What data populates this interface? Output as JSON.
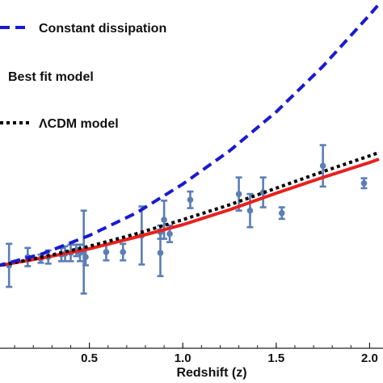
{
  "chart_data": {
    "type": "line",
    "xlabel": "Redshift (z)",
    "ylabel": "",
    "xlim": [
      0.0,
      2.05
    ],
    "ylim": [
      -0.1,
      4.1
    ],
    "grid": false,
    "legend_position": "top-left",
    "x_ticks": [
      "0.5",
      "1.0",
      "1.5",
      "2.0"
    ],
    "x_tick_values": [
      0.5,
      1.0,
      1.5,
      2.0
    ],
    "series": [
      {
        "name": "Constant dissipation",
        "style": "dashed",
        "color": "#1a1ad0",
        "x": [
          0.0,
          0.25,
          0.5,
          0.75,
          1.0,
          1.25,
          1.5,
          1.75,
          2.0,
          2.05
        ],
        "y": [
          0.89,
          1.04,
          1.26,
          1.53,
          1.88,
          2.28,
          2.75,
          3.3,
          3.92,
          4.05
        ]
      },
      {
        "name": "Best fit model",
        "style": "solid",
        "color": "#e8211f",
        "x": [
          0.0,
          0.25,
          0.5,
          0.75,
          1.0,
          1.25,
          1.5,
          1.75,
          2.0,
          2.05
        ],
        "y": [
          0.89,
          0.99,
          1.1,
          1.24,
          1.39,
          1.57,
          1.77,
          1.96,
          2.14,
          2.18
        ]
      },
      {
        "name": "ΛCDM model",
        "style": "dotted",
        "color": "#000000",
        "x": [
          0.0,
          0.25,
          0.5,
          0.75,
          1.0,
          1.25,
          1.5,
          1.75,
          2.0,
          2.05
        ],
        "y": [
          0.89,
          1.0,
          1.13,
          1.28,
          1.45,
          1.63,
          1.83,
          2.03,
          2.22,
          2.26
        ]
      }
    ],
    "data_points": {
      "color": "#5b7eb5",
      "points": [
        {
          "x": 0.07,
          "y": 0.9,
          "err": 0.26
        },
        {
          "x": 0.17,
          "y": 1.0,
          "err": 0.11
        },
        {
          "x": 0.24,
          "y": 0.98,
          "err": 0.05
        },
        {
          "x": 0.28,
          "y": 1.0,
          "err": 0.08
        },
        {
          "x": 0.35,
          "y": 1.03,
          "err": 0.08
        },
        {
          "x": 0.37,
          "y": 1.04,
          "err": 0.09
        },
        {
          "x": 0.4,
          "y": 1.05,
          "err": 0.1
        },
        {
          "x": 0.43,
          "y": 1.08,
          "err": 0.07
        },
        {
          "x": 0.45,
          "y": 1.05,
          "err": 0.1
        },
        {
          "x": 0.47,
          "y": 1.06,
          "err": 0.5
        },
        {
          "x": 0.48,
          "y": 1.0,
          "err": 0.1
        },
        {
          "x": 0.59,
          "y": 1.06,
          "err": 0.1
        },
        {
          "x": 0.68,
          "y": 1.06,
          "err": 0.1
        },
        {
          "x": 0.78,
          "y": 1.26,
          "err": 0.35
        },
        {
          "x": 0.88,
          "y": 1.05,
          "err": 0.28
        },
        {
          "x": 0.88,
          "y": 1.3,
          "err": 0.08
        },
        {
          "x": 0.9,
          "y": 1.45,
          "err": 0.23
        },
        {
          "x": 0.93,
          "y": 1.28,
          "err": 0.1
        },
        {
          "x": 1.04,
          "y": 1.69,
          "err": 0.1
        },
        {
          "x": 1.3,
          "y": 1.76,
          "err": 0.2
        },
        {
          "x": 1.36,
          "y": 1.56,
          "err": 0.2
        },
        {
          "x": 1.43,
          "y": 1.78,
          "err": 0.18
        },
        {
          "x": 1.53,
          "y": 1.53,
          "err": 0.07
        },
        {
          "x": 1.75,
          "y": 2.1,
          "err": 0.25
        },
        {
          "x": 1.97,
          "y": 1.89,
          "err": 0.06
        }
      ]
    }
  }
}
